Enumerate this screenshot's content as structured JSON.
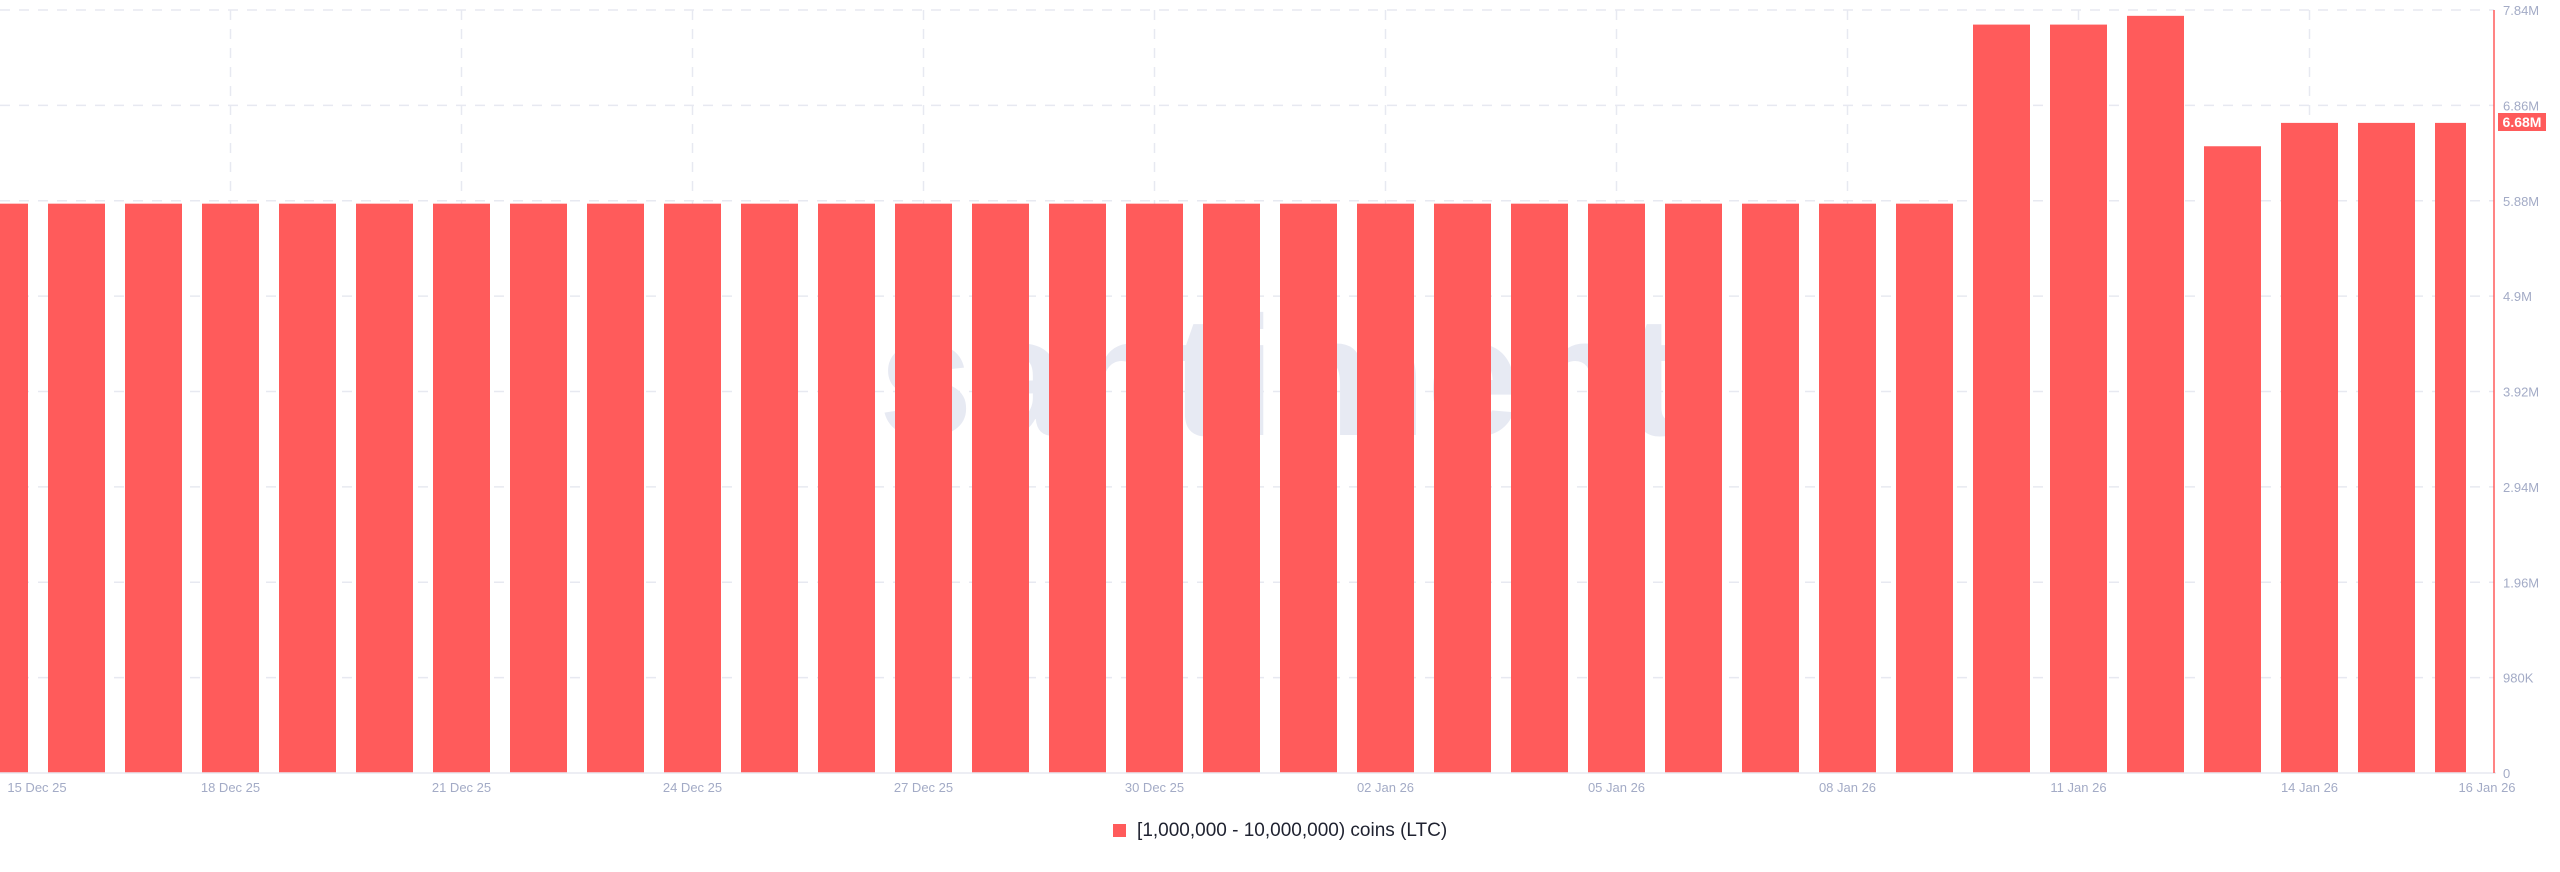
{
  "watermark": "santiment",
  "colors": {
    "bar": "#ff5b5b",
    "axis_line": "#ff5b5b",
    "grid": "#e7e9f1",
    "tick_text": "#a3abc6",
    "watermark": "#e7eaf3",
    "last_value_badge_bg": "#ff5b5b",
    "last_value_badge_text": "#ffffff"
  },
  "last_value_badge": "6.68M",
  "legend": {
    "label": "[1,000,000 - 10,000,000) coins (LTC)"
  },
  "chart_data": {
    "type": "bar",
    "title": "",
    "xlabel": "",
    "ylabel": "",
    "ylim": [
      0,
      7840000
    ],
    "grid": true,
    "legend_position": "bottom",
    "y_axis_side": "right",
    "yticks": [
      0,
      980000,
      1960000,
      2940000,
      3920000,
      4900000,
      5880000,
      6860000,
      7840000
    ],
    "ytick_labels": [
      "0",
      "980K",
      "1.96M",
      "2.94M",
      "3.92M",
      "4.9M",
      "5.88M",
      "6.86M",
      "7.84M"
    ],
    "xtick_labels": [
      "15 Dec 25",
      "18 Dec 25",
      "21 Dec 25",
      "24 Dec 25",
      "27 Dec 25",
      "30 Dec 25",
      "02 Jan 26",
      "05 Jan 26",
      "08 Jan 26",
      "11 Jan 26",
      "14 Jan 26",
      "16 Jan 26"
    ],
    "categories": [
      "15 Dec 25",
      "16 Dec 25",
      "17 Dec 25",
      "18 Dec 25",
      "19 Dec 25",
      "20 Dec 25",
      "21 Dec 25",
      "22 Dec 25",
      "23 Dec 25",
      "24 Dec 25",
      "25 Dec 25",
      "26 Dec 25",
      "27 Dec 25",
      "28 Dec 25",
      "29 Dec 25",
      "30 Dec 25",
      "31 Dec 25",
      "01 Jan 26",
      "02 Jan 26",
      "03 Jan 26",
      "04 Jan 26",
      "05 Jan 26",
      "06 Jan 26",
      "07 Jan 26",
      "08 Jan 26",
      "09 Jan 26",
      "10 Jan 26",
      "11 Jan 26",
      "12 Jan 26",
      "13 Jan 26",
      "14 Jan 26",
      "15 Jan 26",
      "16 Jan 26"
    ],
    "series": [
      {
        "name": "[1,000,000 - 10,000,000) coins (LTC)",
        "values": [
          5850000,
          5850000,
          5850000,
          5850000,
          5850000,
          5850000,
          5850000,
          5850000,
          5850000,
          5850000,
          5850000,
          5850000,
          5850000,
          5850000,
          5850000,
          5850000,
          5850000,
          5850000,
          5850000,
          5850000,
          5850000,
          5850000,
          5850000,
          5850000,
          5850000,
          5850000,
          7690000,
          7690000,
          7780000,
          6440000,
          6680000,
          6680000,
          6680000
        ]
      }
    ]
  }
}
